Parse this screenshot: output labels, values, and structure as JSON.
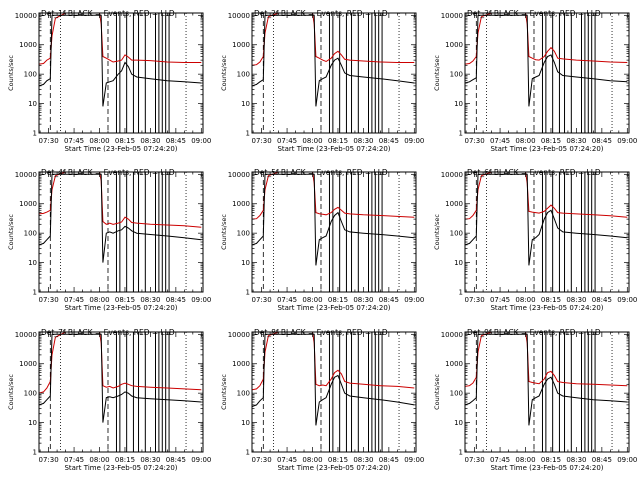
{
  "figure": {
    "ylabel": "Counts/sec",
    "xlabel": "Start Time (23-Feb-05 07:24:20)",
    "x_ticks": [
      "07:30",
      "07:45",
      "08:00",
      "08:15",
      "08:30",
      "08:45",
      "09:00"
    ],
    "y_ticks": [
      "1",
      "10",
      "100",
      "1000",
      "10000"
    ],
    "colors": {
      "events": "#000000",
      "lld": "#cc0000",
      "frame": "#000000"
    }
  },
  "chart_data": [
    {
      "type": "line",
      "title": "Det_1f BLACK = Events, RED = LLD",
      "x": [
        "07:24:20",
        "07:27",
        "07:29",
        "07:31",
        "07:32",
        "07:34",
        "07:40",
        "07:52",
        "08:00",
        "08:01",
        "08:02",
        "08:04",
        "08:06",
        "08:08",
        "08:11",
        "08:13",
        "08:15",
        "08:17",
        "08:19",
        "08:22",
        "08:30",
        "08:40",
        "08:50",
        "09:00"
      ],
      "series": [
        {
          "values": [
            220,
            230,
            300,
            350,
            2000,
            8000,
            12000,
            12000,
            12000,
            5000,
            400,
            350,
            300,
            260,
            280,
            300,
            450,
            380,
            300,
            300,
            290,
            260,
            250,
            250
          ]
        },
        {
          "values": [
            40,
            45,
            60,
            70,
            10000,
            10000,
            10000,
            10000,
            10000,
            10000,
            8,
            50,
            55,
            60,
            100,
            130,
            250,
            180,
            100,
            80,
            70,
            60,
            55,
            50
          ]
        }
      ],
      "ylim": [
        1,
        12000
      ],
      "log_y": true
    },
    {
      "type": "line",
      "title": "Det_2f BLACK = Events, RED = LLD",
      "x": [
        "07:24:20",
        "07:27",
        "07:29",
        "07:31",
        "07:32",
        "07:34",
        "07:40",
        "07:52",
        "08:00",
        "08:01",
        "08:02",
        "08:04",
        "08:06",
        "08:08",
        "08:11",
        "08:13",
        "08:15",
        "08:17",
        "08:19",
        "08:22",
        "08:30",
        "08:40",
        "08:50",
        "09:00"
      ],
      "series": [
        {
          "values": [
            200,
            210,
            260,
            400,
            2500,
            9000,
            12000,
            12000,
            12000,
            5000,
            400,
            350,
            300,
            270,
            350,
            500,
            600,
            450,
            320,
            300,
            280,
            260,
            250,
            250
          ]
        },
        {
          "values": [
            40,
            45,
            55,
            65,
            10000,
            10000,
            10000,
            10000,
            10000,
            10000,
            8,
            60,
            70,
            80,
            200,
            300,
            350,
            200,
            110,
            90,
            80,
            70,
            60,
            50
          ]
        }
      ],
      "ylim": [
        1,
        12000
      ],
      "log_y": true
    },
    {
      "type": "line",
      "title": "Det_3f BLACK = Events, RED = LLD",
      "x": [
        "07:24:20",
        "07:27",
        "07:29",
        "07:31",
        "07:32",
        "07:34",
        "07:40",
        "07:52",
        "08:00",
        "08:01",
        "08:02",
        "08:04",
        "08:06",
        "08:08",
        "08:11",
        "08:13",
        "08:15",
        "08:17",
        "08:19",
        "08:22",
        "08:30",
        "08:40",
        "08:50",
        "09:00"
      ],
      "series": [
        {
          "values": [
            220,
            230,
            280,
            400,
            2500,
            9000,
            12000,
            12000,
            12000,
            5000,
            400,
            350,
            310,
            300,
            400,
            600,
            800,
            600,
            350,
            330,
            300,
            280,
            260,
            250
          ]
        },
        {
          "values": [
            50,
            55,
            65,
            75,
            10000,
            10000,
            10000,
            10000,
            10000,
            10000,
            8,
            70,
            80,
            90,
            250,
            400,
            450,
            250,
            120,
            90,
            80,
            70,
            60,
            55
          ]
        }
      ],
      "ylim": [
        1,
        12000
      ],
      "log_y": true
    },
    {
      "type": "line",
      "title": "Det_4f BLACK = Events, RED = LLD",
      "x": [
        "07:24:20",
        "07:27",
        "07:29",
        "07:31",
        "07:32",
        "07:34",
        "07:40",
        "07:52",
        "08:00",
        "08:01",
        "08:02",
        "08:04",
        "08:06",
        "08:08",
        "08:11",
        "08:13",
        "08:15",
        "08:17",
        "08:19",
        "08:22",
        "08:30",
        "08:40",
        "08:50",
        "09:00"
      ],
      "series": [
        {
          "values": [
            450,
            470,
            520,
            600,
            3000,
            9000,
            12000,
            12000,
            12000,
            6000,
            250,
            200,
            220,
            200,
            220,
            240,
            350,
            300,
            230,
            220,
            200,
            190,
            180,
            160
          ]
        },
        {
          "values": [
            40,
            45,
            60,
            80,
            10000,
            10000,
            10000,
            10000,
            10000,
            10000,
            10,
            100,
            110,
            100,
            120,
            130,
            170,
            150,
            120,
            100,
            90,
            80,
            70,
            60
          ]
        }
      ],
      "ylim": [
        1,
        12000
      ],
      "log_y": true
    },
    {
      "type": "line",
      "title": "Det_5f BLACK = Events, RED = LLD",
      "x": [
        "07:24:20",
        "07:27",
        "07:29",
        "07:31",
        "07:32",
        "07:34",
        "07:40",
        "07:52",
        "08:00",
        "08:01",
        "08:02",
        "08:04",
        "08:06",
        "08:08",
        "08:11",
        "08:13",
        "08:15",
        "08:17",
        "08:19",
        "08:22",
        "08:30",
        "08:40",
        "08:50",
        "09:00"
      ],
      "series": [
        {
          "values": [
            300,
            310,
            400,
            600,
            3000,
            9000,
            12000,
            12000,
            12000,
            5000,
            500,
            460,
            440,
            420,
            500,
            650,
            750,
            600,
            480,
            450,
            420,
            400,
            370,
            350
          ]
        },
        {
          "values": [
            40,
            45,
            60,
            80,
            10000,
            10000,
            10000,
            10000,
            10000,
            10000,
            8,
            60,
            70,
            80,
            250,
            400,
            500,
            250,
            130,
            110,
            100,
            90,
            80,
            70
          ]
        }
      ],
      "ylim": [
        1,
        12000
      ],
      "log_y": true
    },
    {
      "type": "line",
      "title": "Det_6f BLACK = Events, RED = LLD",
      "x": [
        "07:24:20",
        "07:27",
        "07:29",
        "07:31",
        "07:32",
        "07:34",
        "07:40",
        "07:52",
        "08:00",
        "08:01",
        "08:02",
        "08:04",
        "08:06",
        "08:08",
        "08:11",
        "08:13",
        "08:15",
        "08:17",
        "08:19",
        "08:22",
        "08:30",
        "08:40",
        "08:50",
        "09:00"
      ],
      "series": [
        {
          "values": [
            300,
            310,
            400,
            600,
            3000,
            9000,
            12000,
            12000,
            12000,
            5000,
            550,
            520,
            500,
            480,
            550,
            700,
            900,
            700,
            500,
            480,
            450,
            420,
            390,
            350
          ]
        },
        {
          "values": [
            40,
            45,
            60,
            80,
            10000,
            10000,
            10000,
            10000,
            10000,
            10000,
            8,
            60,
            70,
            90,
            300,
            500,
            600,
            300,
            150,
            110,
            100,
            90,
            80,
            70
          ]
        }
      ],
      "ylim": [
        1,
        12000
      ],
      "log_y": true
    },
    {
      "type": "line",
      "title": "Det_7f BLACK = Events, RED = LLD",
      "x": [
        "07:24:20",
        "07:27",
        "07:29",
        "07:31",
        "07:32",
        "07:34",
        "07:40",
        "07:52",
        "08:00",
        "08:01",
        "08:02",
        "08:04",
        "08:06",
        "08:08",
        "08:11",
        "08:13",
        "08:15",
        "08:17",
        "08:19",
        "08:22",
        "08:30",
        "08:40",
        "08:50",
        "09:00"
      ],
      "series": [
        {
          "values": [
            100,
            110,
            150,
            250,
            2000,
            8000,
            12000,
            12000,
            12000,
            5000,
            180,
            160,
            170,
            150,
            170,
            200,
            220,
            200,
            180,
            170,
            160,
            150,
            140,
            130
          ]
        },
        {
          "values": [
            40,
            45,
            60,
            80,
            10000,
            10000,
            10000,
            10000,
            10000,
            10000,
            10,
            70,
            75,
            70,
            80,
            90,
            110,
            100,
            80,
            70,
            65,
            60,
            55,
            50
          ]
        }
      ],
      "ylim": [
        1,
        12000
      ],
      "log_y": true
    },
    {
      "type": "line",
      "title": "Det_8f BLACK = Events, RED = LLD",
      "x": [
        "07:24:20",
        "07:27",
        "07:29",
        "07:31",
        "07:32",
        "07:34",
        "07:40",
        "07:52",
        "08:00",
        "08:01",
        "08:02",
        "08:04",
        "08:06",
        "08:08",
        "08:11",
        "08:13",
        "08:15",
        "08:17",
        "08:19",
        "08:22",
        "08:30",
        "08:40",
        "08:50",
        "09:00"
      ],
      "series": [
        {
          "values": [
            130,
            140,
            180,
            300,
            2500,
            9000,
            12000,
            12000,
            12000,
            5000,
            200,
            180,
            190,
            180,
            300,
            500,
            600,
            450,
            250,
            220,
            200,
            180,
            170,
            150
          ]
        },
        {
          "values": [
            35,
            40,
            55,
            70,
            10000,
            10000,
            10000,
            10000,
            10000,
            10000,
            8,
            50,
            60,
            70,
            200,
            350,
            400,
            200,
            100,
            80,
            70,
            60,
            50,
            40
          ]
        }
      ],
      "ylim": [
        1,
        12000
      ],
      "log_y": true
    },
    {
      "type": "line",
      "title": "Det_9f BLACK = Events, RED = LLD",
      "x": [
        "07:24:20",
        "07:27",
        "07:29",
        "07:31",
        "07:32",
        "07:34",
        "07:40",
        "07:52",
        "08:00",
        "08:01",
        "08:02",
        "08:04",
        "08:06",
        "08:08",
        "08:11",
        "08:13",
        "08:15",
        "08:17",
        "08:19",
        "08:22",
        "08:30",
        "08:40",
        "08:50",
        "09:00"
      ],
      "series": [
        {
          "values": [
            170,
            180,
            220,
            350,
            2500,
            9000,
            12000,
            12000,
            12000,
            5000,
            250,
            230,
            220,
            210,
            300,
            500,
            550,
            400,
            250,
            230,
            210,
            200,
            190,
            180
          ]
        },
        {
          "values": [
            40,
            45,
            55,
            70,
            10000,
            10000,
            10000,
            10000,
            10000,
            10000,
            8,
            60,
            70,
            80,
            200,
            300,
            350,
            200,
            100,
            80,
            70,
            60,
            55,
            50
          ]
        }
      ],
      "ylim": [
        1,
        12000
      ],
      "log_y": true
    }
  ]
}
